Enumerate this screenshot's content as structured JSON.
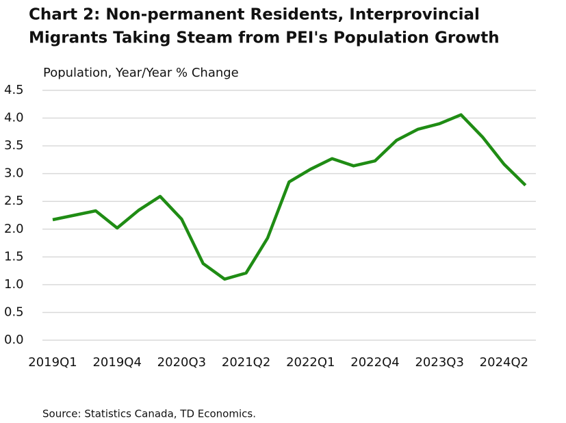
{
  "chart_data": {
    "type": "line",
    "title": [
      "Chart 2: Non-permanent Residents, Interprovincial",
      "Migrants Taking Steam from PEI's Population Growth"
    ],
    "y_label": "Population, Year/Year % Change",
    "source": "Source: Statistics Canada, TD Economics.",
    "categories": [
      "2019Q1",
      null,
      null,
      "2019Q4",
      null,
      null,
      "2020Q3",
      null,
      null,
      "2021Q2",
      null,
      null,
      "2022Q1",
      null,
      null,
      "2022Q4",
      null,
      null,
      "2023Q3",
      null,
      null,
      "2024Q2",
      null
    ],
    "series": [
      {
        "name": "Population growth",
        "color": "#1f8c14",
        "values": [
          2.17,
          2.25,
          2.33,
          2.02,
          2.34,
          2.59,
          2.18,
          1.38,
          1.1,
          1.21,
          1.84,
          2.85,
          3.08,
          3.27,
          3.14,
          3.23,
          3.6,
          3.8,
          3.9,
          4.06,
          3.66,
          3.17,
          2.79
        ]
      }
    ],
    "ylim": [
      0,
      4.5
    ],
    "yticks": [
      {
        "value": 0,
        "label": "0.0"
      },
      0.5,
      {
        "value": 1,
        "label": "1.0"
      },
      1.5,
      {
        "value": 2,
        "label": "2.0"
      },
      2.5,
      {
        "value": 3,
        "label": "3.0"
      },
      3.5,
      {
        "value": 4,
        "label": "4.0"
      },
      4.5
    ],
    "grid": true
  }
}
